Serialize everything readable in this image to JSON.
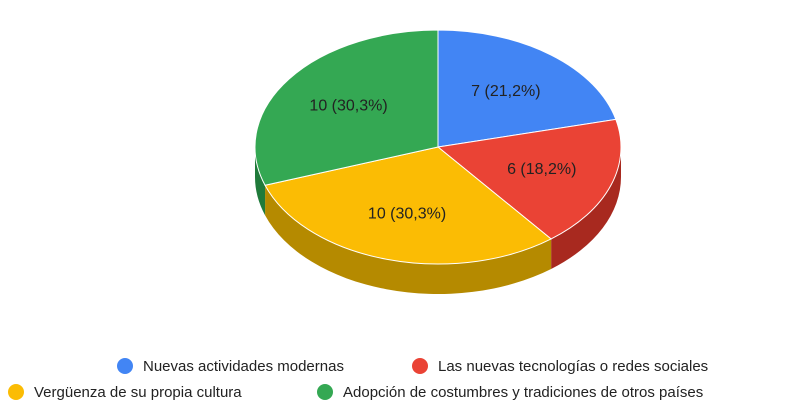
{
  "chart_data": {
    "type": "pie",
    "categories": [
      "Nuevas actividades modernas",
      "Las nuevas tecnologías o redes sociales",
      "Vergüenza de su propia cultura",
      "Adopción de costumbres y tradiciones de otros países"
    ],
    "values": [
      7,
      6,
      10,
      10
    ],
    "value_labels": [
      "7 (21,2%)",
      "6 (18,2%)",
      "10 (30,3%)",
      "10 (30,3%)"
    ],
    "colors": [
      "#4285f4",
      "#ea4335",
      "#fbbc04",
      "#34a853"
    ],
    "side_colors": [
      "#2a5fb8",
      "#a8291f",
      "#b58a00",
      "#1f7a3a"
    ]
  }
}
